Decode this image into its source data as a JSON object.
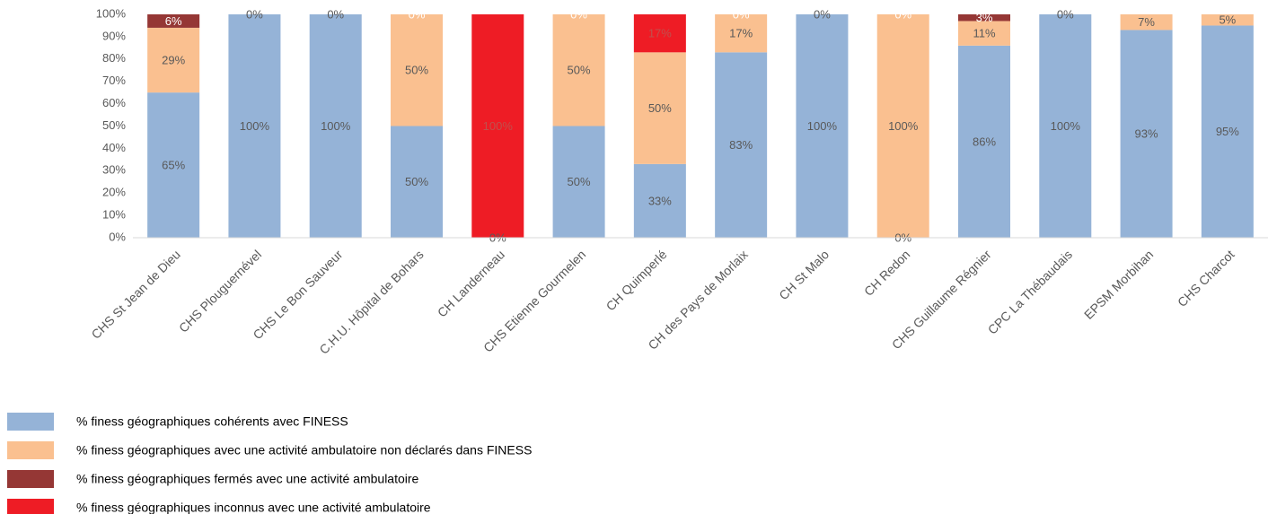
{
  "chart_data": {
    "type": "stacked_bar",
    "categories": [
      "CHS St Jean de Dieu",
      "CHS Plouguernével",
      "CHS Le Bon Sauveur",
      "C.H.U. Hôpital de Bohars",
      "CH Landerneau",
      "CHS Etienne Gourmelen",
      "CH Quimperlé",
      "CH des Pays de Morlaix",
      "CH St Malo",
      "CH Redon",
      "CHS Guillaume Régnier",
      "CPC La Thébaudais",
      "EPSM Morbihan",
      "CHS Charcot"
    ],
    "series": [
      {
        "name": "% finess géographiques cohérents avec FINESS",
        "color": "#95b3d7",
        "label_color": "#595959",
        "values": [
          65,
          100,
          100,
          50,
          0,
          50,
          33,
          83,
          100,
          0,
          86,
          100,
          93,
          95
        ],
        "value_labels": [
          "65%",
          "100%",
          "100%",
          "50%",
          "0%",
          "50%",
          "33%",
          "83%",
          "100%",
          "0%",
          "86%",
          "100%",
          "93%",
          "95%"
        ]
      },
      {
        "name": "% finess géographiques avec une activité ambulatoire non déclarés dans FINESS",
        "color": "#fac090",
        "label_color": "#595959",
        "values": [
          29,
          0,
          0,
          50,
          0,
          50,
          50,
          17,
          0,
          100,
          11,
          0,
          7,
          5
        ],
        "value_labels": [
          "29%",
          "0%",
          "0%",
          "50%",
          null,
          "50%",
          "50%",
          "17%",
          "0%",
          "100%",
          "11%",
          "0%",
          "7%",
          "5%"
        ]
      },
      {
        "name": "% finess géographiques fermés avec une activité ambulatoire",
        "color": "#953735",
        "label_color": "#ffffff",
        "values": [
          6,
          0,
          0,
          0,
          0,
          0,
          0,
          0,
          0,
          0,
          3,
          0,
          0,
          0
        ],
        "value_labels": [
          "6%",
          null,
          null,
          "0%",
          null,
          "0%",
          null,
          "0%",
          null,
          "0%",
          "3%",
          null,
          null,
          null
        ]
      },
      {
        "name": "% finess géographiques inconnus avec une activité ambulatoire",
        "color": "#ee1c25",
        "label_color": "#c0504d",
        "values": [
          0,
          0,
          0,
          0,
          100,
          0,
          17,
          0,
          0,
          0,
          0,
          0,
          0,
          0
        ],
        "value_labels": [
          null,
          null,
          null,
          null,
          "100%",
          null,
          "17%",
          null,
          null,
          null,
          null,
          null,
          null,
          null
        ]
      }
    ],
    "ylim": [
      0,
      100
    ],
    "yticks": [
      {
        "value": 0,
        "label": "0%"
      },
      {
        "value": 10,
        "label": "10%"
      },
      {
        "value": 20,
        "label": "20%"
      },
      {
        "value": 30,
        "label": "30%"
      },
      {
        "value": 40,
        "label": "40%"
      },
      {
        "value": 50,
        "label": "50%"
      },
      {
        "value": 60,
        "label": "60%"
      },
      {
        "value": 70,
        "label": "70%"
      },
      {
        "value": 80,
        "label": "80%"
      },
      {
        "value": 90,
        "label": "90%"
      },
      {
        "value": 100,
        "label": "100%"
      }
    ],
    "grid": false
  }
}
